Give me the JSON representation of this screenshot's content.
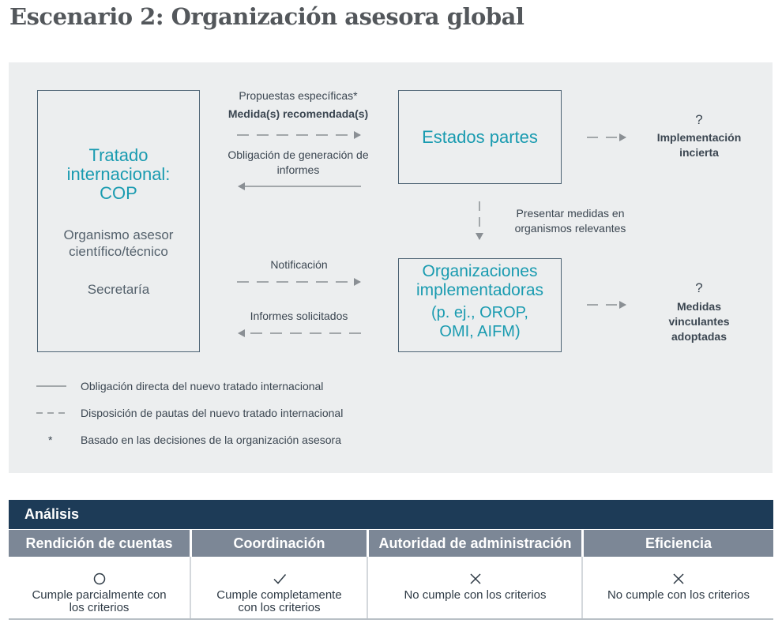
{
  "title": "Escenario 2: Organización asesora global",
  "boxes": {
    "treaty": {
      "title_lines": [
        "Tratado",
        "internacional:",
        "COP"
      ],
      "body_lines": [
        "Organismo asesor",
        "científico/técnico"
      ],
      "extra": "Secretaría"
    },
    "states": {
      "title": "Estados partes"
    },
    "orgs": {
      "title_lines": [
        "Organizaciones",
        "implementadoras"
      ],
      "sub_lines": [
        "(p. ej., OROP,",
        "OMI, AIFM)"
      ]
    }
  },
  "flows": {
    "proposals": "Propuestas específicas*",
    "recommended": "Medida(s) recomendada(s)",
    "reporting_lines": [
      "Obligación de generación de",
      "informes"
    ],
    "present_lines": [
      "Presentar medidas en",
      "organismos relevantes"
    ],
    "notification": "Notificación",
    "requested_reports": "Informes solicitados"
  },
  "outcomes": {
    "uncertain": {
      "mark": "?",
      "lines": [
        "Implementación",
        "incierta"
      ]
    },
    "binding": {
      "mark": "?",
      "lines": [
        "Medidas",
        "vinculantes",
        "adoptadas"
      ]
    }
  },
  "legend": {
    "solid": "Obligación directa del nuevo tratado internacional",
    "dashed": "Disposición de pautas del nuevo tratado internacional",
    "asterisk_mark": "*",
    "asterisk": "Basado en las decisiones de la organización asesora"
  },
  "analysis": {
    "heading": "Análisis",
    "columns": [
      {
        "header": "Rendición de cuentas",
        "icon": "circle-icon",
        "text_lines": [
          "Cumple parcialmente con",
          "los criterios"
        ]
      },
      {
        "header": "Coordinación",
        "icon": "check-icon",
        "text_lines": [
          "Cumple completamente",
          "con los criterios"
        ]
      },
      {
        "header": "Autoridad de administración",
        "icon": "cross-icon",
        "text_lines": [
          "No cumple con los criterios"
        ]
      },
      {
        "header": "Eficiencia",
        "icon": "cross-icon",
        "text_lines": [
          "No cumple con los criterios"
        ]
      }
    ]
  },
  "colors": {
    "accent_teal": "#199bb0",
    "box_border": "#4d6374",
    "panel_bg": "#eceeef",
    "arrow": "#8a8f94",
    "table_header_dark": "#1d3b57",
    "table_header_light": "#7c8796"
  }
}
